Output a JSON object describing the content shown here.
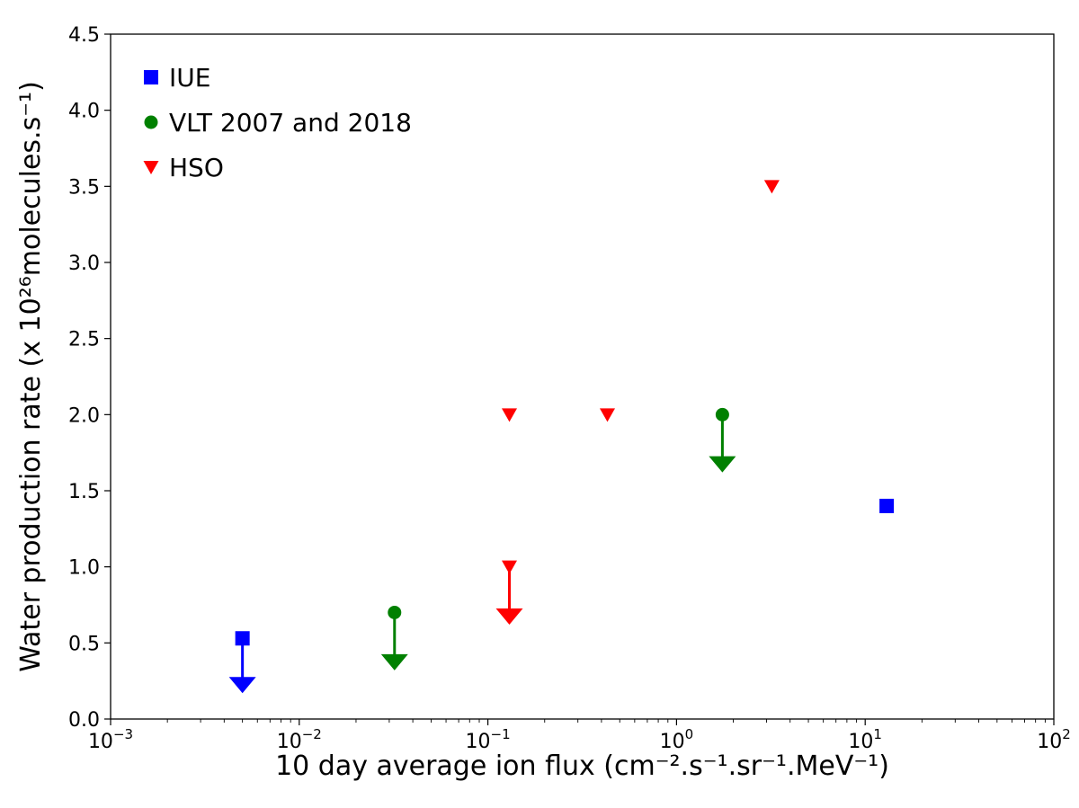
{
  "chart_data": {
    "type": "scatter",
    "xlabel": "10 day average ion flux (cm⁻².s⁻¹.sr⁻¹.MeV⁻¹)",
    "ylabel": "Water production rate (x 10²⁶molecules.s⁻¹)",
    "x_scale": "log",
    "xlim": [
      0.001,
      100
    ],
    "ylim": [
      0,
      4.5
    ],
    "x_ticks": [
      {
        "value": 0.001,
        "base": "10",
        "exp": "−3"
      },
      {
        "value": 0.01,
        "base": "10",
        "exp": "−2"
      },
      {
        "value": 0.1,
        "base": "10",
        "exp": "−1"
      },
      {
        "value": 1,
        "base": "10",
        "exp": "0"
      },
      {
        "value": 10,
        "base": "10",
        "exp": "1"
      },
      {
        "value": 100,
        "base": "10",
        "exp": "2"
      }
    ],
    "y_ticks": [
      {
        "value": 0.0,
        "label": "0.0"
      },
      {
        "value": 0.5,
        "label": "0.5"
      },
      {
        "value": 1.0,
        "label": "1.0"
      },
      {
        "value": 1.5,
        "label": "1.5"
      },
      {
        "value": 2.0,
        "label": "2.0"
      },
      {
        "value": 2.5,
        "label": "2.5"
      },
      {
        "value": 3.0,
        "label": "3.0"
      },
      {
        "value": 3.5,
        "label": "3.5"
      },
      {
        "value": 4.0,
        "label": "4.0"
      },
      {
        "value": 4.5,
        "label": "4.5"
      }
    ],
    "grid": false,
    "legend_position": "top-left",
    "series": [
      {
        "name": "IUE",
        "marker": "square",
        "color": "#0000ff",
        "points": [
          {
            "x": 0.005,
            "y": 0.53,
            "upper_limit": true,
            "arrow_to": 0.17
          },
          {
            "x": 13,
            "y": 1.4,
            "upper_limit": false
          }
        ]
      },
      {
        "name": "VLT 2007 and 2018",
        "marker": "circle",
        "color": "#008000",
        "points": [
          {
            "x": 0.032,
            "y": 0.7,
            "upper_limit": true,
            "arrow_to": 0.32
          },
          {
            "x": 1.75,
            "y": 2.0,
            "upper_limit": true,
            "arrow_to": 1.62
          }
        ]
      },
      {
        "name": "HSO",
        "marker": "triangle-down",
        "color": "#ff0000",
        "points": [
          {
            "x": 0.13,
            "y": 1.0,
            "upper_limit": true,
            "arrow_to": 0.62
          },
          {
            "x": 0.13,
            "y": 2.0,
            "upper_limit": false
          },
          {
            "x": 0.43,
            "y": 2.0,
            "upper_limit": false
          },
          {
            "x": 3.2,
            "y": 3.5,
            "upper_limit": false
          }
        ]
      }
    ]
  }
}
